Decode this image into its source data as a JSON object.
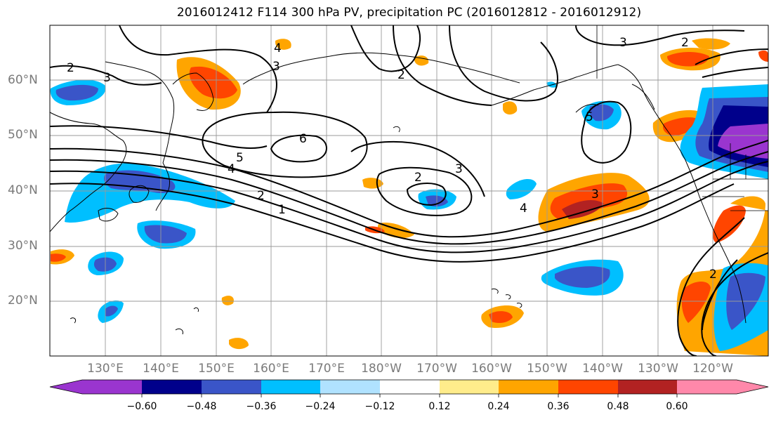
{
  "title": "2016012412 F114 300 hPa PV, precipitation PC (2016012812 - 2016012912)",
  "lat_labels": [
    "60°N",
    "50°N",
    "40°N",
    "30°N",
    "20°N"
  ],
  "lon_labels": [
    "130°E",
    "140°E",
    "150°E",
    "160°E",
    "170°E",
    "180°W",
    "170°W",
    "160°W",
    "150°W",
    "140°W",
    "130°W",
    "120°W"
  ],
  "contour_labels": [
    "2",
    "3",
    "4",
    "3",
    "2",
    "6",
    "5",
    "4",
    "2",
    "1",
    "2",
    "3",
    "5",
    "4",
    "3",
    "2",
    "3",
    "2"
  ],
  "colorbar": {
    "ticks": [
      "−0.60",
      "−0.48",
      "−0.36",
      "−0.24",
      "−0.12",
      "0.12",
      "0.24",
      "0.36",
      "0.48",
      "0.60"
    ],
    "colors": [
      "#9a35cf",
      "#00008b",
      "#3a55c8",
      "#00bfff",
      "#b0e2ff",
      "#ffffff",
      "#ffec8b",
      "#ffa500",
      "#ff4500",
      "#b22222",
      "#ff88aa"
    ]
  },
  "colors": {
    "neg_deep": "#9a35cf",
    "neg_dark": "#00008b",
    "neg_mid": "#3a55c8",
    "neg_light": "#00bfff",
    "neg_pale": "#b0e2ff",
    "pos_pale": "#ffec8b",
    "pos_light": "#ffa500",
    "pos_mid": "#ff4500",
    "pos_dark": "#b22222"
  }
}
